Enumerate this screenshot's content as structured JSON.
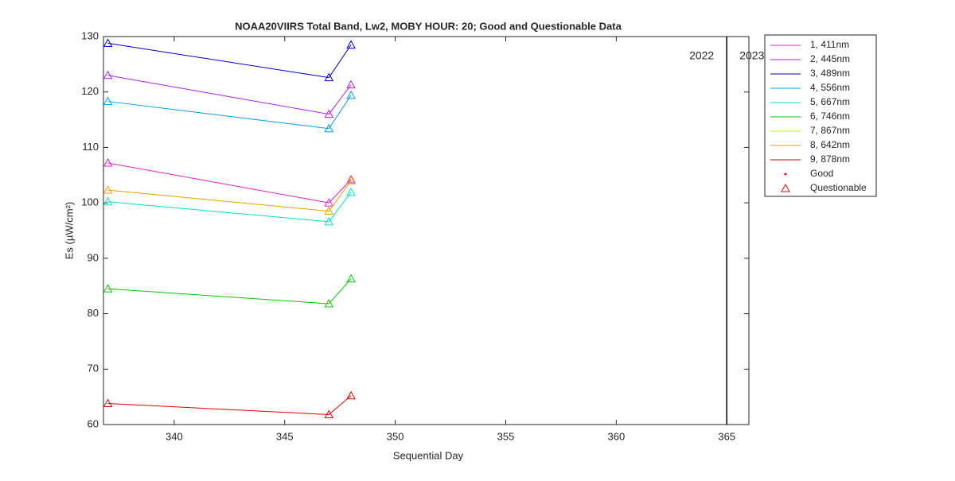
{
  "chart_data": {
    "type": "line",
    "title": "NOAA20VIIRS Total Band,  Lw2, MOBY HOUR: 20;  Good and Questionable Data",
    "xlabel": "Sequential Day",
    "ylabel": "Es (µW/cm²)",
    "x": [
      337,
      347,
      348
    ],
    "series": [
      {
        "name": "1, 411nm",
        "color": "#e020c8",
        "values": [
          107.2,
          100.0,
          104.2
        ]
      },
      {
        "name": "2, 445nm",
        "color": "#b020e8",
        "values": [
          123.0,
          116.0,
          121.3
        ]
      },
      {
        "name": "3, 489nm",
        "color": "#0000c8",
        "values": [
          128.8,
          122.6,
          128.5
        ]
      },
      {
        "name": "4, 556nm",
        "color": "#00a0e0",
        "values": [
          118.3,
          113.4,
          119.4
        ]
      },
      {
        "name": "5, 667nm",
        "color": "#00e0c0",
        "values": [
          100.2,
          96.6,
          101.9
        ]
      },
      {
        "name": "6, 746nm",
        "color": "#00cc00",
        "values": [
          84.5,
          81.8,
          86.3
        ]
      },
      {
        "name": "7, 867nm",
        "color": "#b0f020",
        "values": [
          null,
          null,
          null
        ]
      },
      {
        "name": "8, 642nm",
        "color": "#f0a000",
        "values": [
          102.3,
          98.5,
          104.0
        ]
      },
      {
        "name": "9, 878nm",
        "color": "#e00000",
        "values": [
          63.8,
          61.8,
          65.2
        ]
      }
    ],
    "marker_legend": [
      {
        "name": "Good",
        "color": "#ff0000"
      },
      {
        "name": "Questionable",
        "color": "#ff0000"
      }
    ],
    "vline": 365,
    "annotations": [
      "2022",
      "2023"
    ],
    "xlim": [
      336.8,
      366
    ],
    "xticks": [
      340,
      345,
      350,
      355,
      360,
      365
    ],
    "ylim": [
      60,
      130
    ],
    "yticks": [
      60,
      70,
      80,
      90,
      100,
      110,
      120,
      130
    ]
  }
}
